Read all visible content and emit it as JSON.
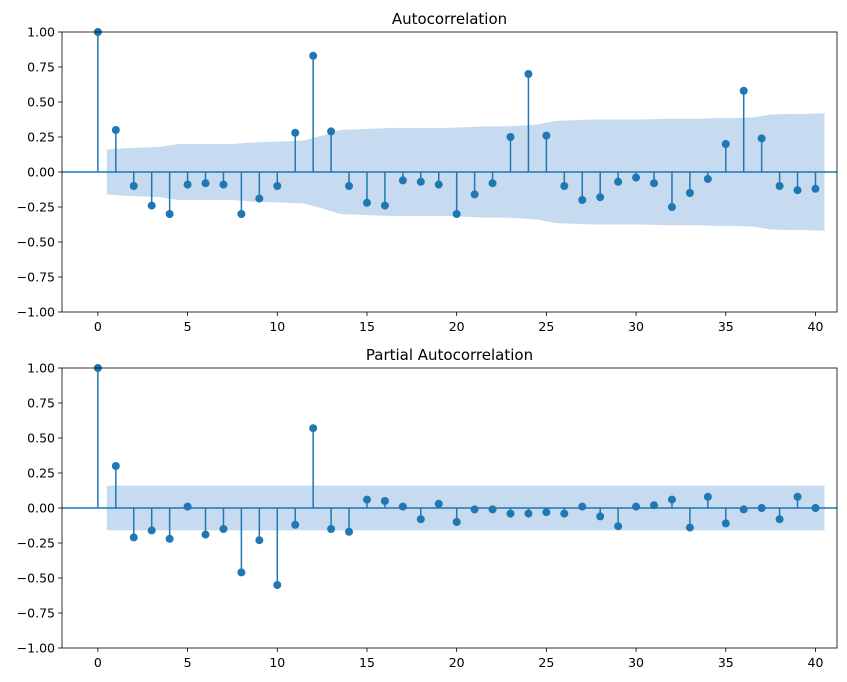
{
  "chart_data": [
    {
      "type": "stem",
      "title": "Autocorrelation",
      "xlabel": "",
      "ylabel": "",
      "xlim": [
        -2,
        41.2
      ],
      "ylim": [
        -1.0,
        1.0
      ],
      "x_ticks": [
        0,
        5,
        10,
        15,
        20,
        25,
        30,
        35,
        40
      ],
      "x_tick_labels": [
        "0",
        "5",
        "10",
        "15",
        "20",
        "25",
        "30",
        "35",
        "40"
      ],
      "y_ticks": [
        -1.0,
        -0.75,
        -0.5,
        -0.25,
        0.0,
        0.25,
        0.5,
        0.75,
        1.0
      ],
      "y_tick_labels": [
        "−1.00",
        "−0.75",
        "−0.50",
        "−0.25",
        "0.00",
        "0.25",
        "0.50",
        "0.75",
        "1.00"
      ],
      "lags": [
        0,
        1,
        2,
        3,
        4,
        5,
        6,
        7,
        8,
        9,
        10,
        11,
        12,
        13,
        14,
        15,
        16,
        17,
        18,
        19,
        20,
        21,
        22,
        23,
        24,
        25,
        26,
        27,
        28,
        29,
        30,
        31,
        32,
        33,
        34,
        35,
        36,
        37,
        38,
        39,
        40
      ],
      "values": [
        1.0,
        0.3,
        -0.1,
        -0.24,
        -0.3,
        -0.09,
        -0.08,
        -0.09,
        -0.3,
        -0.19,
        -0.1,
        0.28,
        0.83,
        0.29,
        -0.1,
        -0.22,
        -0.24,
        -0.06,
        -0.07,
        -0.09,
        -0.3,
        -0.16,
        -0.08,
        0.25,
        0.7,
        0.26,
        -0.1,
        -0.2,
        -0.18,
        -0.07,
        -0.04,
        -0.08,
        -0.25,
        -0.15,
        -0.05,
        0.2,
        0.58,
        0.24,
        -0.1,
        -0.13,
        -0.12
      ],
      "confidence_band": {
        "lags": [
          0.5,
          1.5,
          2.5,
          3.5,
          4.5,
          5.5,
          6.5,
          7.5,
          8.5,
          9.5,
          10.5,
          11.5,
          12.5,
          13.5,
          14.5,
          15.5,
          16.5,
          17.5,
          18.5,
          19.5,
          20.5,
          21.5,
          22.5,
          23.5,
          24.5,
          25.5,
          26.5,
          27.5,
          28.5,
          29.5,
          30.5,
          31.5,
          32.5,
          33.5,
          34.5,
          35.5,
          36.5,
          37.5,
          38.5,
          39.5,
          40.5
        ],
        "upper": [
          0.16,
          0.17,
          0.175,
          0.18,
          0.2,
          0.2,
          0.2,
          0.2,
          0.21,
          0.215,
          0.22,
          0.225,
          0.26,
          0.3,
          0.305,
          0.31,
          0.315,
          0.315,
          0.315,
          0.315,
          0.32,
          0.325,
          0.325,
          0.33,
          0.34,
          0.365,
          0.37,
          0.375,
          0.375,
          0.375,
          0.375,
          0.38,
          0.38,
          0.38,
          0.385,
          0.385,
          0.39,
          0.41,
          0.415,
          0.415,
          0.42
        ]
      },
      "color": "#1f77b4",
      "band_color": "#c6dbef"
    },
    {
      "type": "stem",
      "title": "Partial Autocorrelation",
      "xlabel": "",
      "ylabel": "",
      "xlim": [
        -2,
        41.2
      ],
      "ylim": [
        -1.0,
        1.0
      ],
      "x_ticks": [
        0,
        5,
        10,
        15,
        20,
        25,
        30,
        35,
        40
      ],
      "x_tick_labels": [
        "0",
        "5",
        "10",
        "15",
        "20",
        "25",
        "30",
        "35",
        "40"
      ],
      "y_ticks": [
        -1.0,
        -0.75,
        -0.5,
        -0.25,
        0.0,
        0.25,
        0.5,
        0.75,
        1.0
      ],
      "y_tick_labels": [
        "−1.00",
        "−0.75",
        "−0.50",
        "−0.25",
        "0.00",
        "0.25",
        "0.50",
        "0.75",
        "1.00"
      ],
      "lags": [
        0,
        1,
        2,
        3,
        4,
        5,
        6,
        7,
        8,
        9,
        10,
        11,
        12,
        13,
        14,
        15,
        16,
        17,
        18,
        19,
        20,
        21,
        22,
        23,
        24,
        25,
        26,
        27,
        28,
        29,
        30,
        31,
        32,
        33,
        34,
        35,
        36,
        37,
        38,
        39,
        40
      ],
      "values": [
        1.0,
        0.3,
        -0.21,
        -0.16,
        -0.22,
        0.01,
        -0.19,
        -0.15,
        -0.46,
        -0.23,
        -0.55,
        -0.12,
        0.57,
        -0.15,
        -0.17,
        0.06,
        0.05,
        0.01,
        -0.08,
        0.03,
        -0.1,
        -0.01,
        -0.01,
        -0.04,
        -0.04,
        -0.03,
        -0.04,
        0.01,
        -0.06,
        -0.13,
        0.01,
        0.02,
        0.06,
        -0.14,
        0.08,
        -0.11,
        -0.01,
        0.0,
        -0.08,
        0.08,
        0.0
      ],
      "confidence_band": {
        "lags": [
          0.5,
          40.5
        ],
        "upper": [
          0.16,
          0.16
        ]
      },
      "color": "#1f77b4",
      "band_color": "#c6dbef"
    }
  ]
}
